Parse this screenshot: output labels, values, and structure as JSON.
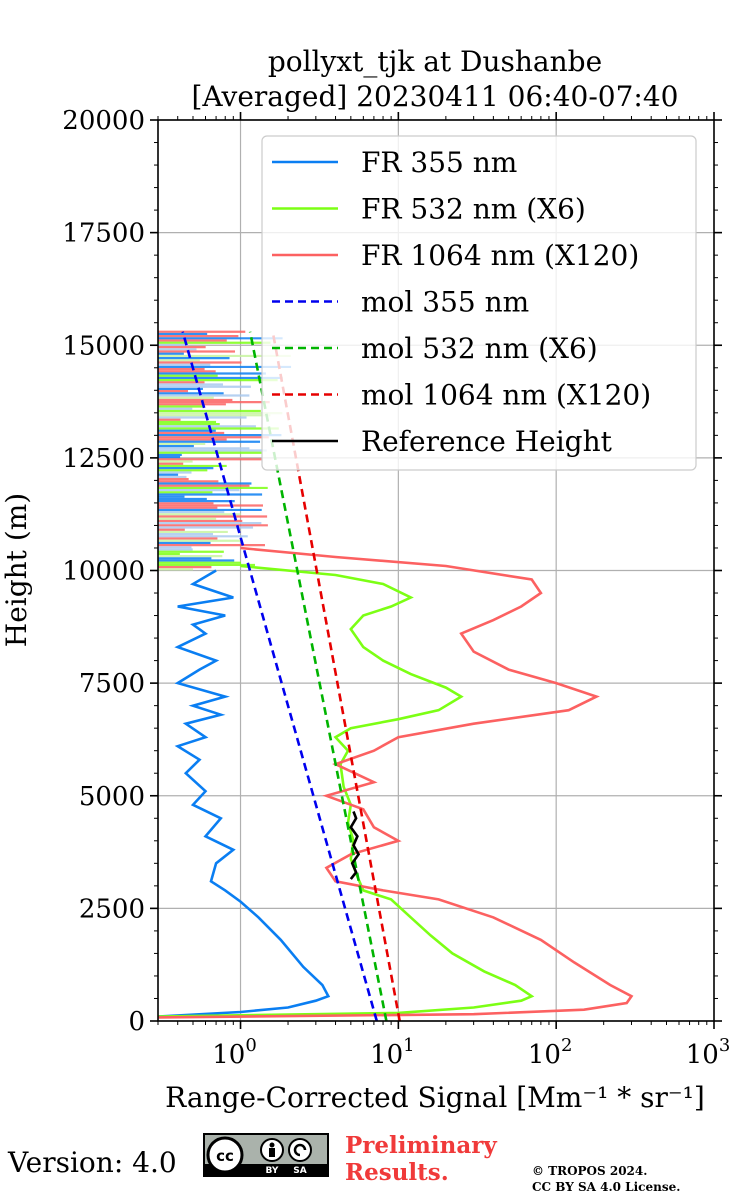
{
  "chart_data": {
    "type": "line",
    "title_line1": "pollyxt_tjk at Dushanbe",
    "title_line2": "[Averaged] 20230411 06:40-07:40",
    "xlabel_text": "Range-Corrected Signal",
    "xlabel_units": "[Mm⁻¹ * sr⁻¹]",
    "ylabel": "Height (m)",
    "xscale": "log",
    "xlim": [
      0.3,
      1000
    ],
    "ylim": [
      0,
      20000
    ],
    "grid": true,
    "legend_placement": "top-right",
    "x_ticks": [
      {
        "value": 1,
        "base": "10",
        "exp": "0"
      },
      {
        "value": 10,
        "base": "10",
        "exp": "1"
      },
      {
        "value": 100,
        "base": "10",
        "exp": "2"
      },
      {
        "value": 1000,
        "base": "10",
        "exp": "3"
      }
    ],
    "y_ticks": [
      {
        "value": 0,
        "label": "0"
      },
      {
        "value": 2500,
        "label": "2500"
      },
      {
        "value": 5000,
        "label": "5000"
      },
      {
        "value": 7500,
        "label": "7500"
      },
      {
        "value": 10000,
        "label": "10000"
      },
      {
        "value": 12500,
        "label": "12500"
      },
      {
        "value": 15000,
        "label": "15000"
      },
      {
        "value": 17500,
        "label": "17500"
      },
      {
        "value": 20000,
        "label": "20000"
      }
    ],
    "series": [
      {
        "name": "FR 355 nm",
        "color": "#0a7ef2",
        "dash": "solid",
        "points": [
          [
            0.3,
            100
          ],
          [
            1,
            200
          ],
          [
            2,
            300
          ],
          [
            3,
            450
          ],
          [
            3.6,
            550
          ],
          [
            3.3,
            800
          ],
          [
            2.5,
            1200
          ],
          [
            1.8,
            1800
          ],
          [
            1.3,
            2300
          ],
          [
            1.0,
            2650
          ],
          [
            0.8,
            2900
          ],
          [
            0.65,
            3100
          ],
          [
            0.7,
            3500
          ],
          [
            0.9,
            3800
          ],
          [
            0.6,
            4100
          ],
          [
            0.75,
            4500
          ],
          [
            0.5,
            4800
          ],
          [
            0.6,
            5100
          ],
          [
            0.45,
            5500
          ],
          [
            0.55,
            5800
          ],
          [
            0.4,
            6100
          ],
          [
            0.6,
            6300
          ],
          [
            0.45,
            6600
          ],
          [
            0.75,
            6800
          ],
          [
            0.5,
            7000
          ],
          [
            0.8,
            7200
          ],
          [
            0.4,
            7500
          ],
          [
            0.55,
            7800
          ],
          [
            0.7,
            8000
          ],
          [
            0.4,
            8300
          ],
          [
            0.6,
            8600
          ],
          [
            0.5,
            8800
          ],
          [
            0.8,
            9000
          ],
          [
            0.4,
            9200
          ],
          [
            0.9,
            9400
          ],
          [
            0.5,
            9700
          ],
          [
            0.7,
            10000
          ]
        ]
      },
      {
        "name": "FR 532 nm (X6)",
        "color": "#7cff14",
        "dash": "solid",
        "points": [
          [
            0.3,
            100
          ],
          [
            10,
            180
          ],
          [
            30,
            300
          ],
          [
            60,
            450
          ],
          [
            70,
            550
          ],
          [
            55,
            800
          ],
          [
            35,
            1100
          ],
          [
            22,
            1500
          ],
          [
            16,
            1900
          ],
          [
            12,
            2300
          ],
          [
            9,
            2700
          ],
          [
            6,
            2900
          ],
          [
            5.5,
            3200
          ],
          [
            5,
            3600
          ],
          [
            5.2,
            4000
          ],
          [
            4.8,
            4400
          ],
          [
            5,
            4800
          ],
          [
            4.5,
            5200
          ],
          [
            4.3,
            5700
          ],
          [
            4.8,
            6000
          ],
          [
            4,
            6300
          ],
          [
            5,
            6500
          ],
          [
            10,
            6700
          ],
          [
            18,
            6900
          ],
          [
            25,
            7200
          ],
          [
            20,
            7400
          ],
          [
            12,
            7700
          ],
          [
            8,
            8000
          ],
          [
            6,
            8300
          ],
          [
            5,
            8700
          ],
          [
            6,
            9000
          ],
          [
            9,
            9200
          ],
          [
            12,
            9400
          ],
          [
            8,
            9700
          ],
          [
            4,
            9900
          ],
          [
            1,
            10100
          ]
        ]
      },
      {
        "name": "FR 1064 nm (X120)",
        "color": "#fc6161",
        "dash": "solid",
        "points": [
          [
            0.3,
            80
          ],
          [
            30,
            150
          ],
          [
            150,
            250
          ],
          [
            280,
            400
          ],
          [
            300,
            550
          ],
          [
            220,
            800
          ],
          [
            130,
            1300
          ],
          [
            80,
            1800
          ],
          [
            40,
            2300
          ],
          [
            18,
            2700
          ],
          [
            8,
            2900
          ],
          [
            4,
            3100
          ],
          [
            3.5,
            3400
          ],
          [
            5,
            3700
          ],
          [
            10,
            4000
          ],
          [
            7,
            4300
          ],
          [
            6,
            4700
          ],
          [
            3.5,
            5000
          ],
          [
            7,
            5300
          ],
          [
            4,
            5700
          ],
          [
            7,
            6000
          ],
          [
            10,
            6300
          ],
          [
            30,
            6600
          ],
          [
            120,
            6900
          ],
          [
            180,
            7200
          ],
          [
            100,
            7500
          ],
          [
            50,
            7800
          ],
          [
            30,
            8200
          ],
          [
            25,
            8600
          ],
          [
            40,
            8900
          ],
          [
            60,
            9200
          ],
          [
            80,
            9500
          ],
          [
            70,
            9800
          ],
          [
            20,
            10100
          ],
          [
            4,
            10300
          ],
          [
            1,
            10500
          ]
        ]
      },
      {
        "name": "mol 355 nm",
        "color": "#0000ee",
        "dash": "dashed",
        "points": [
          [
            7.3,
            0
          ],
          [
            0.43,
            15300
          ]
        ]
      },
      {
        "name": "mol 532 nm (X6)",
        "color": "#00b400",
        "dash": "dashed",
        "points": [
          [
            8.4,
            0
          ],
          [
            1.15,
            15300
          ]
        ]
      },
      {
        "name": "mol 1064 nm (X120)",
        "color": "#e60000",
        "dash": "dashed",
        "points": [
          [
            10.2,
            0
          ],
          [
            1.6,
            15300
          ]
        ]
      },
      {
        "name": "Reference Height",
        "color": "#000000",
        "dash": "solid",
        "points": [
          [
            5.0,
            3150
          ],
          [
            5.4,
            3300
          ],
          [
            5.1,
            3500
          ],
          [
            5.6,
            3700
          ],
          [
            5.2,
            3900
          ],
          [
            5.5,
            4100
          ],
          [
            5.0,
            4300
          ],
          [
            5.4,
            4500
          ],
          [
            5.2,
            4650
          ]
        ]
      }
    ],
    "noise_layer": {
      "ymin": 10000,
      "ymax": 15300
    }
  },
  "footer": {
    "version_label": "Version: 4.0",
    "preliminary_line1": "Preliminary",
    "preliminary_line2": "Results.",
    "copyright_line1": "© TROPOS 2024.",
    "copyright_line2": "CC BY SA 4.0 License.",
    "cc_badge": {
      "cc": "cc",
      "by": "BY",
      "sa": "SA"
    }
  }
}
